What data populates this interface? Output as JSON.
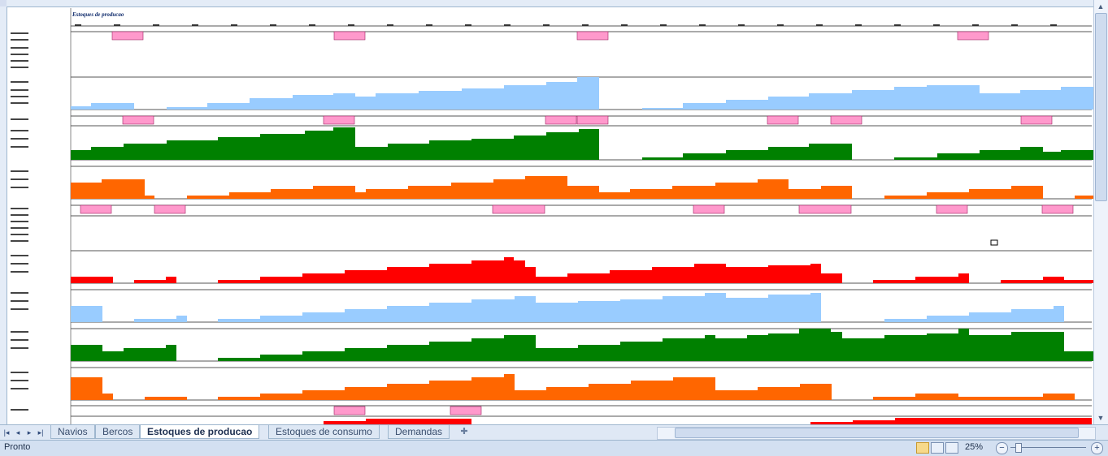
{
  "window": {
    "sheet_title": "Estoques de producao"
  },
  "sheet_tabs": [
    "Navios",
    "Bercos",
    "Estoques de producao",
    "Estoques de consumo",
    "Demandas"
  ],
  "active_tab": "Estoques de producao",
  "status": {
    "text": "Pronto",
    "zoom": "25%"
  },
  "icons": {
    "first_sheet": "first-sheet-icon",
    "prev_sheet": "prev-sheet-icon",
    "next_sheet": "next-sheet-icon",
    "last_sheet": "last-sheet-icon",
    "insert_sheet": "insert-sheet-icon"
  },
  "colors": {
    "light_blue": "#99ccff",
    "green": "#008000",
    "orange": "#ff6600",
    "red": "#ff0000",
    "pink_label": "#ff99cc",
    "title": "#0e2a6b"
  }
}
